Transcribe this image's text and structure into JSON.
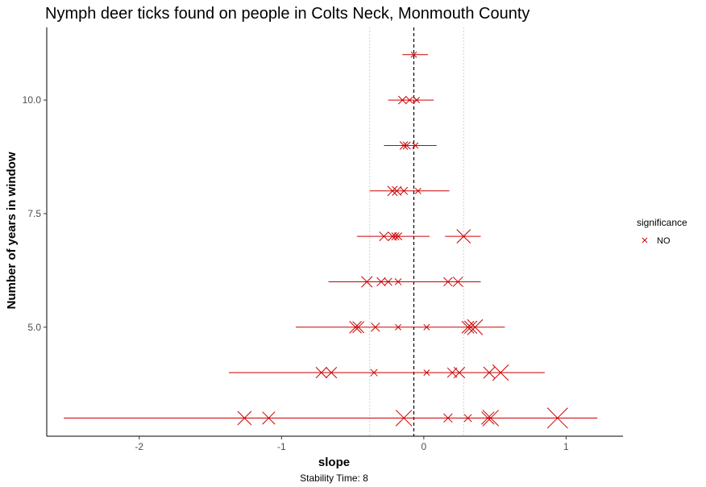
{
  "chart_data": {
    "type": "scatter",
    "title": "Nymph deer ticks found on people in Colts Neck, Monmouth County",
    "xlabel": "slope",
    "ylabel": "Number of years in window",
    "caption": "Stability Time: 8",
    "xlim": [
      -2.65,
      1.4
    ],
    "ylim": [
      2.6,
      11.6
    ],
    "x_ticks": [
      -2,
      -1,
      0,
      1
    ],
    "x_tick_labels": [
      "-2",
      "-1",
      "0",
      "1"
    ],
    "y_ticks": [
      5.0,
      7.5,
      10.0
    ],
    "y_tick_labels": [
      "5.0",
      "7.5",
      "10.0"
    ],
    "grid": false,
    "legend": {
      "title": "significance",
      "placement": "right",
      "entries": [
        {
          "label": "NO",
          "color": "#cc0000",
          "marker": "x"
        }
      ]
    },
    "reference_lines": {
      "mean_slope": -0.07,
      "lower_bound": -0.38,
      "upper_bound": 0.28
    },
    "color": "#cc0000",
    "rows": [
      {
        "years": 11,
        "xmin": -0.15,
        "xmax": 0.03,
        "points": [
          {
            "x": -0.07,
            "size": 0.3
          }
        ]
      },
      {
        "years": 10,
        "xmin": -0.25,
        "xmax": 0.07,
        "points": [
          {
            "x": -0.15,
            "size": 0.5
          },
          {
            "x": -0.1,
            "size": 0.35
          },
          {
            "x": -0.05,
            "size": 0.3
          }
        ]
      },
      {
        "years": 9,
        "xmin": -0.28,
        "xmax": 0.09,
        "points": [
          {
            "x": -0.14,
            "size": 0.5
          },
          {
            "x": -0.12,
            "size": 0.45
          },
          {
            "x": -0.06,
            "size": 0.3
          }
        ]
      },
      {
        "years": 8,
        "xmin": -0.38,
        "xmax": 0.18,
        "points": [
          {
            "x": -0.22,
            "size": 0.65
          },
          {
            "x": -0.19,
            "size": 0.6
          },
          {
            "x": -0.14,
            "size": 0.45
          },
          {
            "x": -0.04,
            "size": 0.3
          }
        ]
      },
      {
        "years": 7,
        "xmin": -0.47,
        "xmax": 0.04,
        "points": [
          {
            "x": -0.28,
            "size": 0.6
          },
          {
            "x": -0.22,
            "size": 0.5
          },
          {
            "x": -0.2,
            "size": 0.45
          },
          {
            "x": -0.18,
            "size": 0.45
          }
        ]
      },
      {
        "years": 7,
        "xmin": 0.15,
        "xmax": 0.4,
        "points": [
          {
            "x": 0.28,
            "size": 1.0
          }
        ]
      },
      {
        "years": 6,
        "xmin": -0.67,
        "xmax": 0.4,
        "points": [
          {
            "x": -0.4,
            "size": 0.75
          },
          {
            "x": -0.3,
            "size": 0.55
          },
          {
            "x": -0.25,
            "size": 0.45
          },
          {
            "x": -0.18,
            "size": 0.35
          },
          {
            "x": 0.17,
            "size": 0.55
          },
          {
            "x": 0.24,
            "size": 0.65
          }
        ]
      },
      {
        "years": 5,
        "xmin": -0.9,
        "xmax": 0.57,
        "points": [
          {
            "x": -0.48,
            "size": 0.85
          },
          {
            "x": -0.46,
            "size": 0.8
          },
          {
            "x": -0.34,
            "size": 0.55
          },
          {
            "x": -0.18,
            "size": 0.3
          },
          {
            "x": 0.02,
            "size": 0.3
          },
          {
            "x": 0.31,
            "size": 0.85
          },
          {
            "x": 0.33,
            "size": 0.9
          },
          {
            "x": 0.36,
            "size": 1.15
          }
        ]
      },
      {
        "years": 4,
        "xmin": -1.37,
        "xmax": 0.85,
        "points": [
          {
            "x": -0.72,
            "size": 0.75
          },
          {
            "x": -0.65,
            "size": 0.75
          },
          {
            "x": -0.35,
            "size": 0.4
          },
          {
            "x": 0.02,
            "size": 0.3
          },
          {
            "x": 0.2,
            "size": 0.65
          },
          {
            "x": 0.25,
            "size": 0.75
          },
          {
            "x": 0.46,
            "size": 0.8
          },
          {
            "x": 0.54,
            "size": 1.2
          }
        ]
      },
      {
        "years": 3,
        "xmin": -2.53,
        "xmax": 1.22,
        "points": [
          {
            "x": -1.26,
            "size": 1.0
          },
          {
            "x": -1.09,
            "size": 0.9
          },
          {
            "x": -0.14,
            "size": 1.2
          },
          {
            "x": 0.17,
            "size": 0.55
          },
          {
            "x": 0.31,
            "size": 0.45
          },
          {
            "x": 0.45,
            "size": 0.9
          },
          {
            "x": 0.47,
            "size": 1.2
          },
          {
            "x": 0.94,
            "size": 1.6
          }
        ]
      }
    ]
  }
}
